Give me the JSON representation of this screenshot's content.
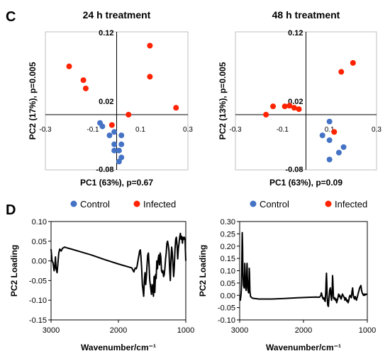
{
  "panels": {
    "c": "C",
    "d": "D"
  },
  "legend": {
    "control": "Control",
    "infected": "Infected",
    "control_color": "#4472c4",
    "infected_color": "#ff2200"
  },
  "chart_data": [
    {
      "type": "scatter",
      "title": "24 h treatment",
      "xlabel": "PC1 (63%), p=0.67",
      "ylabel": "PC2 (17%), p=0.005",
      "xlim": [
        -0.3,
        0.3
      ],
      "ylim": [
        -0.08,
        0.12
      ],
      "x_ticks": [
        "-0.3",
        "-0.1",
        "0.1",
        "0.3"
      ],
      "y_ticks": [
        "0.12",
        "0.02",
        "-0.08"
      ],
      "series": [
        {
          "name": "Control",
          "color": "#4472c4",
          "points": [
            [
              -0.07,
              -0.012
            ],
            [
              -0.06,
              -0.017
            ],
            [
              -0.03,
              -0.03
            ],
            [
              -0.01,
              -0.025
            ],
            [
              0.02,
              -0.03
            ],
            [
              -0.01,
              -0.043
            ],
            [
              -0.01,
              -0.052
            ],
            [
              0.01,
              -0.052
            ],
            [
              0.02,
              -0.043
            ],
            [
              0.02,
              -0.062
            ],
            [
              0.01,
              -0.068
            ]
          ]
        },
        {
          "name": "Infected",
          "color": "#ff2200",
          "points": [
            [
              -0.2,
              0.07
            ],
            [
              -0.14,
              0.05
            ],
            [
              -0.13,
              0.038
            ],
            [
              -0.02,
              -0.015
            ],
            [
              0.05,
              0.0
            ],
            [
              0.14,
              0.1
            ],
            [
              0.14,
              0.055
            ],
            [
              0.25,
              0.01
            ]
          ]
        }
      ]
    },
    {
      "type": "scatter",
      "title": "48 h treatment",
      "xlabel": "PC1 (63%), p=0.09",
      "ylabel": "PC2 (13%), p=0.005",
      "xlim": [
        -0.3,
        0.3
      ],
      "ylim": [
        -0.08,
        0.12
      ],
      "x_ticks": [
        "-0.3",
        "-0.1",
        "0.1",
        "0.3"
      ],
      "y_ticks": [
        "0.12",
        "0.02",
        "-0.08"
      ],
      "series": [
        {
          "name": "Control",
          "color": "#4472c4",
          "points": [
            [
              0.1,
              -0.01
            ],
            [
              0.07,
              -0.03
            ],
            [
              0.1,
              -0.037
            ],
            [
              0.16,
              -0.047
            ],
            [
              0.14,
              -0.055
            ],
            [
              0.1,
              -0.065
            ]
          ]
        },
        {
          "name": "Infected",
          "color": "#ff2200",
          "points": [
            [
              -0.17,
              0.0
            ],
            [
              -0.14,
              0.012
            ],
            [
              -0.09,
              0.012
            ],
            [
              -0.07,
              0.013
            ],
            [
              -0.05,
              0.01
            ],
            [
              -0.03,
              0.008
            ],
            [
              0.12,
              -0.025
            ],
            [
              0.15,
              0.062
            ],
            [
              0.2,
              0.075
            ]
          ]
        }
      ]
    },
    {
      "type": "line",
      "title": "",
      "xlabel": "Wavenumber/cm⁻¹",
      "ylabel": "PC2 Loading",
      "xlim": [
        3000,
        1000
      ],
      "ylim": [
        -0.15,
        0.1
      ],
      "x_ticks": [
        "3000",
        "2000",
        "1000"
      ],
      "y_ticks": [
        "0.10",
        "0.05",
        "0.00",
        "-0.05",
        "-0.10",
        "-0.15"
      ],
      "series": [
        {
          "name": "",
          "color": "#000000",
          "points": [
            [
              3000,
              0.03
            ],
            [
              2985,
              0.0
            ],
            [
              2970,
              -0.005
            ],
            [
              2955,
              -0.025
            ],
            [
              2945,
              -0.015
            ],
            [
              2935,
              0.01
            ],
            [
              2925,
              -0.02
            ],
            [
              2910,
              -0.03
            ],
            [
              2900,
              -0.01
            ],
            [
              2885,
              0.02
            ],
            [
              2870,
              0.03
            ],
            [
              2850,
              0.025
            ],
            [
              2830,
              0.032
            ],
            [
              2800,
              0.035
            ],
            [
              2760,
              0.033
            ],
            [
              2700,
              0.03
            ],
            [
              2600,
              0.025
            ],
            [
              2400,
              0.015
            ],
            [
              2200,
              0.003
            ],
            [
              2000,
              -0.008
            ],
            [
              1800,
              -0.018
            ],
            [
              1790,
              -0.022
            ],
            [
              1780,
              -0.025
            ],
            [
              1770,
              -0.028
            ],
            [
              1760,
              -0.022
            ],
            [
              1750,
              -0.018
            ],
            [
              1735,
              -0.02
            ],
            [
              1725,
              -0.015
            ],
            [
              1715,
              -0.005
            ],
            [
              1705,
              0.005
            ],
            [
              1695,
              0.015
            ],
            [
              1685,
              0.025
            ],
            [
              1675,
              0.028
            ],
            [
              1665,
              0.01
            ],
            [
              1655,
              -0.02
            ],
            [
              1645,
              -0.06
            ],
            [
              1635,
              -0.075
            ],
            [
              1625,
              -0.09
            ],
            [
              1615,
              -0.05
            ],
            [
              1605,
              -0.03
            ],
            [
              1595,
              -0.06
            ],
            [
              1585,
              -0.04
            ],
            [
              1575,
              -0.01
            ],
            [
              1565,
              0.015
            ],
            [
              1555,
              0.02
            ],
            [
              1545,
              -0.01
            ],
            [
              1535,
              -0.05
            ],
            [
              1520,
              -0.07
            ],
            [
              1510,
              -0.085
            ],
            [
              1500,
              -0.06
            ],
            [
              1490,
              -0.07
            ],
            [
              1480,
              -0.09
            ],
            [
              1470,
              -0.04
            ],
            [
              1460,
              -0.08
            ],
            [
              1450,
              -0.035
            ],
            [
              1440,
              -0.045
            ],
            [
              1430,
              0.0
            ],
            [
              1420,
              -0.02
            ],
            [
              1410,
              0.005
            ],
            [
              1400,
              0.015
            ],
            [
              1390,
              -0.01
            ],
            [
              1380,
              0.02
            ],
            [
              1370,
              0.01
            ],
            [
              1360,
              -0.025
            ],
            [
              1350,
              -0.03
            ],
            [
              1340,
              -0.025
            ],
            [
              1330,
              -0.04
            ],
            [
              1320,
              -0.035
            ],
            [
              1310,
              -0.02
            ],
            [
              1300,
              0.005
            ],
            [
              1290,
              0.02
            ],
            [
              1280,
              0.045
            ],
            [
              1270,
              0.05
            ],
            [
              1260,
              0.04
            ],
            [
              1250,
              0.025
            ],
            [
              1240,
              -0.02
            ],
            [
              1230,
              -0.05
            ],
            [
              1220,
              0.0
            ],
            [
              1210,
              0.035
            ],
            [
              1200,
              0.02
            ],
            [
              1190,
              -0.01
            ],
            [
              1180,
              -0.04
            ],
            [
              1170,
              -0.015
            ],
            [
              1160,
              0.03
            ],
            [
              1150,
              0.055
            ],
            [
              1140,
              0.06
            ],
            [
              1130,
              0.04
            ],
            [
              1120,
              0.005
            ],
            [
              1110,
              0.03
            ],
            [
              1100,
              0.045
            ],
            [
              1090,
              0.06
            ],
            [
              1080,
              0.07
            ],
            [
              1070,
              0.055
            ],
            [
              1060,
              0.062
            ],
            [
              1050,
              0.045
            ],
            [
              1040,
              0.06
            ],
            [
              1030,
              0.055
            ],
            [
              1020,
              0.06
            ],
            [
              1010,
              0.05
            ],
            [
              1000,
              0.0
            ]
          ]
        }
      ]
    },
    {
      "type": "line",
      "title": "",
      "xlabel": "Wavenumber/cm⁻¹",
      "ylabel": "PC2 Loading",
      "xlim": [
        3000,
        1000
      ],
      "ylim": [
        -0.1,
        0.3
      ],
      "x_ticks": [
        "3000",
        "2000",
        "1000"
      ],
      "y_ticks": [
        "0.30",
        "0.25",
        "0.20",
        "0.15",
        "0.10",
        "0.05",
        "0.00",
        "-0.05",
        "-0.10"
      ],
      "series": [
        {
          "name": "",
          "color": "#000000",
          "points": [
            [
              3000,
              -0.015
            ],
            [
              2990,
              -0.02
            ],
            [
              2980,
              0.0
            ],
            [
              2975,
              0.02
            ],
            [
              2970,
              0.06
            ],
            [
              2965,
              0.15
            ],
            [
              2960,
              0.255
            ],
            [
              2955,
              0.2
            ],
            [
              2950,
              0.1
            ],
            [
              2940,
              0.04
            ],
            [
              2930,
              0.03
            ],
            [
              2925,
              0.05
            ],
            [
              2920,
              0.13
            ],
            [
              2915,
              0.1
            ],
            [
              2910,
              0.04
            ],
            [
              2900,
              0.02
            ],
            [
              2895,
              0.03
            ],
            [
              2890,
              0.09
            ],
            [
              2885,
              0.13
            ],
            [
              2880,
              0.08
            ],
            [
              2870,
              0.02
            ],
            [
              2860,
              0.01
            ],
            [
              2855,
              0.04
            ],
            [
              2850,
              0.11
            ],
            [
              2845,
              0.09
            ],
            [
              2840,
              0.02
            ],
            [
              2830,
              -0.005
            ],
            [
              2800,
              -0.012
            ],
            [
              2700,
              -0.015
            ],
            [
              2500,
              -0.015
            ],
            [
              2300,
              -0.013
            ],
            [
              2100,
              -0.01
            ],
            [
              1900,
              -0.008
            ],
            [
              1800,
              -0.007
            ],
            [
              1750,
              -0.008
            ],
            [
              1730,
              -0.002
            ],
            [
              1720,
              0.01
            ],
            [
              1710,
              0.0
            ],
            [
              1700,
              -0.01
            ],
            [
              1690,
              -0.015
            ],
            [
              1680,
              -0.01
            ],
            [
              1670,
              -0.02
            ],
            [
              1660,
              -0.025
            ],
            [
              1650,
              0.02
            ],
            [
              1645,
              0.06
            ],
            [
              1640,
              0.09
            ],
            [
              1635,
              0.05
            ],
            [
              1630,
              0.0
            ],
            [
              1620,
              -0.04
            ],
            [
              1610,
              -0.045
            ],
            [
              1600,
              -0.01
            ],
            [
              1590,
              0.02
            ],
            [
              1580,
              0.03
            ],
            [
              1570,
              0.0
            ],
            [
              1560,
              -0.02
            ],
            [
              1550,
              0.03
            ],
            [
              1545,
              0.08
            ],
            [
              1540,
              0.06
            ],
            [
              1535,
              0.02
            ],
            [
              1530,
              -0.01
            ],
            [
              1520,
              -0.015
            ],
            [
              1510,
              -0.01
            ],
            [
              1500,
              -0.02
            ],
            [
              1490,
              -0.015
            ],
            [
              1480,
              -0.03
            ],
            [
              1470,
              -0.02
            ],
            [
              1460,
              -0.01
            ],
            [
              1450,
              0.005
            ],
            [
              1440,
              -0.005
            ],
            [
              1430,
              0.0
            ],
            [
              1420,
              -0.01
            ],
            [
              1410,
              -0.015
            ],
            [
              1400,
              -0.005
            ],
            [
              1390,
              0.005
            ],
            [
              1380,
              0.0
            ],
            [
              1370,
              -0.005
            ],
            [
              1360,
              -0.01
            ],
            [
              1350,
              -0.02
            ],
            [
              1340,
              -0.01
            ],
            [
              1330,
              -0.015
            ],
            [
              1320,
              -0.025
            ],
            [
              1310,
              -0.02
            ],
            [
              1300,
              -0.03
            ],
            [
              1290,
              -0.02
            ],
            [
              1280,
              -0.005
            ],
            [
              1270,
              0.0
            ],
            [
              1260,
              -0.005
            ],
            [
              1250,
              -0.01
            ],
            [
              1240,
              0.015
            ],
            [
              1230,
              0.03
            ],
            [
              1220,
              0.0
            ],
            [
              1210,
              -0.01
            ],
            [
              1200,
              -0.015
            ],
            [
              1190,
              -0.005
            ],
            [
              1180,
              -0.012
            ],
            [
              1170,
              -0.02
            ],
            [
              1160,
              -0.01
            ],
            [
              1150,
              0.0
            ],
            [
              1140,
              0.01
            ],
            [
              1130,
              0.02
            ],
            [
              1120,
              0.03
            ],
            [
              1110,
              0.035
            ],
            [
              1100,
              0.04
            ],
            [
              1090,
              0.02
            ],
            [
              1080,
              0.01
            ],
            [
              1070,
              0.005
            ],
            [
              1060,
              0.0
            ],
            [
              1050,
              0.005
            ],
            [
              1040,
              0.0
            ],
            [
              1030,
              0.005
            ],
            [
              1020,
              0.003
            ],
            [
              1010,
              0.005
            ],
            [
              1000,
              0.005
            ]
          ]
        }
      ]
    }
  ]
}
